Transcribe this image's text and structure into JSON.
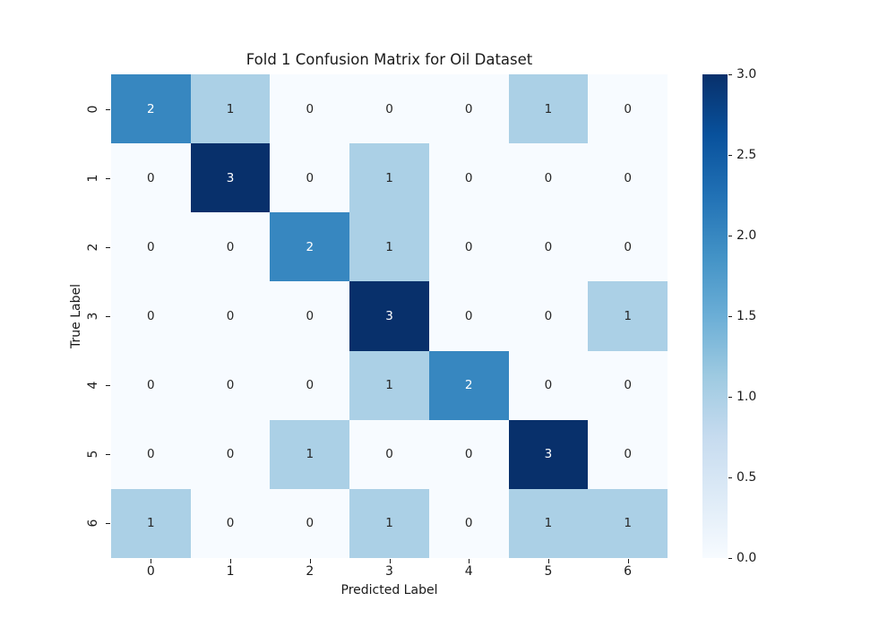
{
  "chart_data": {
    "type": "heatmap",
    "title": "Fold 1 Confusion Matrix for Oil Dataset",
    "xlabel": "Predicted Label",
    "ylabel": "True Label",
    "x_tick_labels": [
      "0",
      "1",
      "2",
      "3",
      "4",
      "5",
      "6"
    ],
    "y_tick_labels": [
      "0",
      "1",
      "2",
      "3",
      "4",
      "5",
      "6"
    ],
    "matrix": [
      [
        2,
        1,
        0,
        0,
        0,
        1,
        0
      ],
      [
        0,
        3,
        0,
        1,
        0,
        0,
        0
      ],
      [
        0,
        0,
        2,
        1,
        0,
        0,
        0
      ],
      [
        0,
        0,
        0,
        3,
        0,
        0,
        1
      ],
      [
        0,
        0,
        0,
        1,
        2,
        0,
        0
      ],
      [
        0,
        0,
        1,
        0,
        0,
        3,
        0
      ],
      [
        1,
        0,
        0,
        1,
        0,
        1,
        1
      ]
    ],
    "vmin": 0,
    "vmax": 3,
    "grid": false,
    "colormap_name": "Blues",
    "colormap_stops": [
      "#f7fbff",
      "#deebf7",
      "#c6dbef",
      "#9ecae1",
      "#6baed6",
      "#4292c6",
      "#2171b5",
      "#08519c",
      "#08306b"
    ],
    "value_colors": {
      "0": "#f7fbff",
      "1": "#abd0e6",
      "2": "#3787c0",
      "3": "#08306b"
    },
    "annotation_text_colors": {
      "dark": "#262626",
      "light": "#ffffff"
    },
    "light_text_threshold": 2,
    "colorbar": {
      "position": "right",
      "tick_labels": [
        "0.0",
        "0.5",
        "1.0",
        "1.5",
        "2.0",
        "2.5",
        "3.0"
      ]
    }
  }
}
